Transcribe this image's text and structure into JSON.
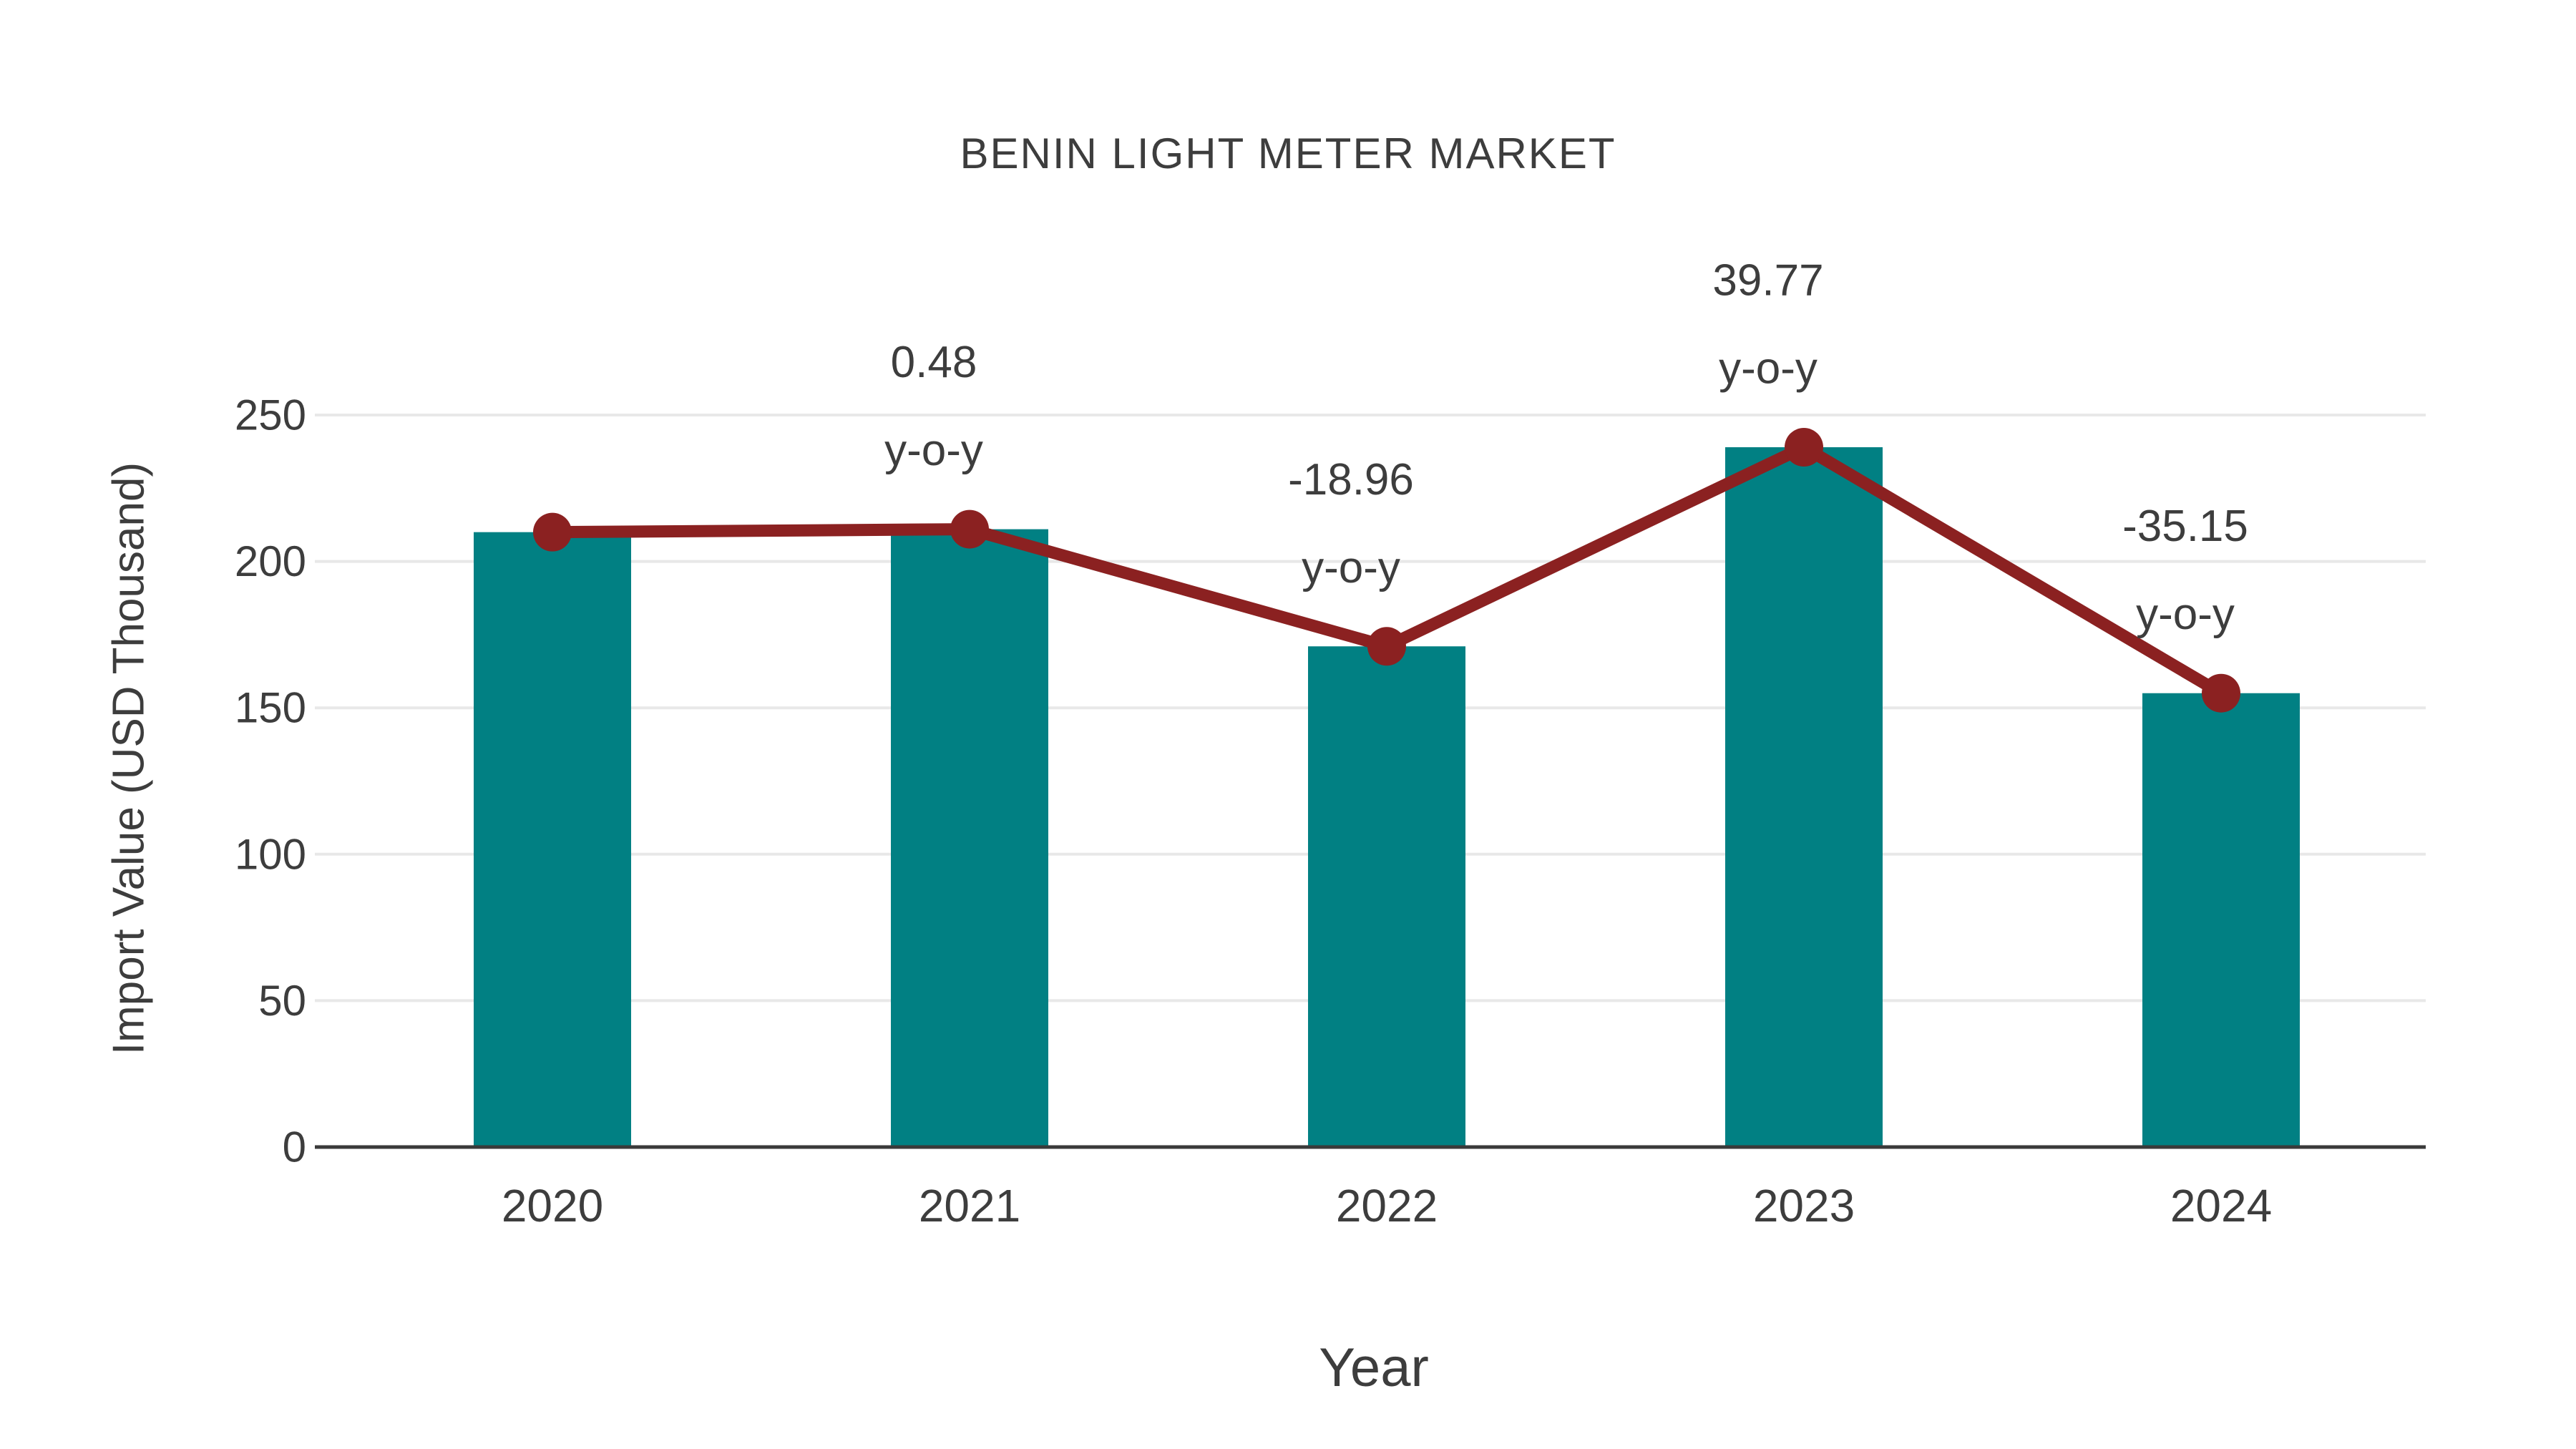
{
  "title": "BENIN LIGHT METER MARKET",
  "chart_data": {
    "type": "bar",
    "title": "BENIN LIGHT METER MARKET",
    "xlabel": "Year",
    "ylabel": "Import Value (USD Thousand)",
    "categories": [
      "2020",
      "2021",
      "2022",
      "2023",
      "2024"
    ],
    "series": [
      {
        "name": "Import Value bars",
        "type": "bar",
        "values": [
          210,
          211,
          171,
          239,
          155
        ]
      },
      {
        "name": "Import Value trend line",
        "type": "line",
        "values": [
          210,
          211,
          171,
          239,
          155
        ]
      }
    ],
    "annotations": [
      {
        "category": "2021",
        "line1": "0.48",
        "line2": "y-o-y"
      },
      {
        "category": "2022",
        "line1": "-18.96",
        "line2": "y-o-y"
      },
      {
        "category": "2023",
        "line1": "39.77",
        "line2": "y-o-y"
      },
      {
        "category": "2024",
        "line1": "-35.15",
        "line2": "y-o-y"
      }
    ],
    "yticks": [
      0,
      50,
      100,
      150,
      200,
      250
    ],
    "ylim": [
      0,
      250
    ],
    "grid": true,
    "legend": "none",
    "colors": {
      "bar": "#018083",
      "line": "#8b2121",
      "marker": "#8b2121",
      "text": "#3d3d3d",
      "grid": "#e8e8e8",
      "axis": "#3a3a3a",
      "background": "#ffffff"
    }
  }
}
